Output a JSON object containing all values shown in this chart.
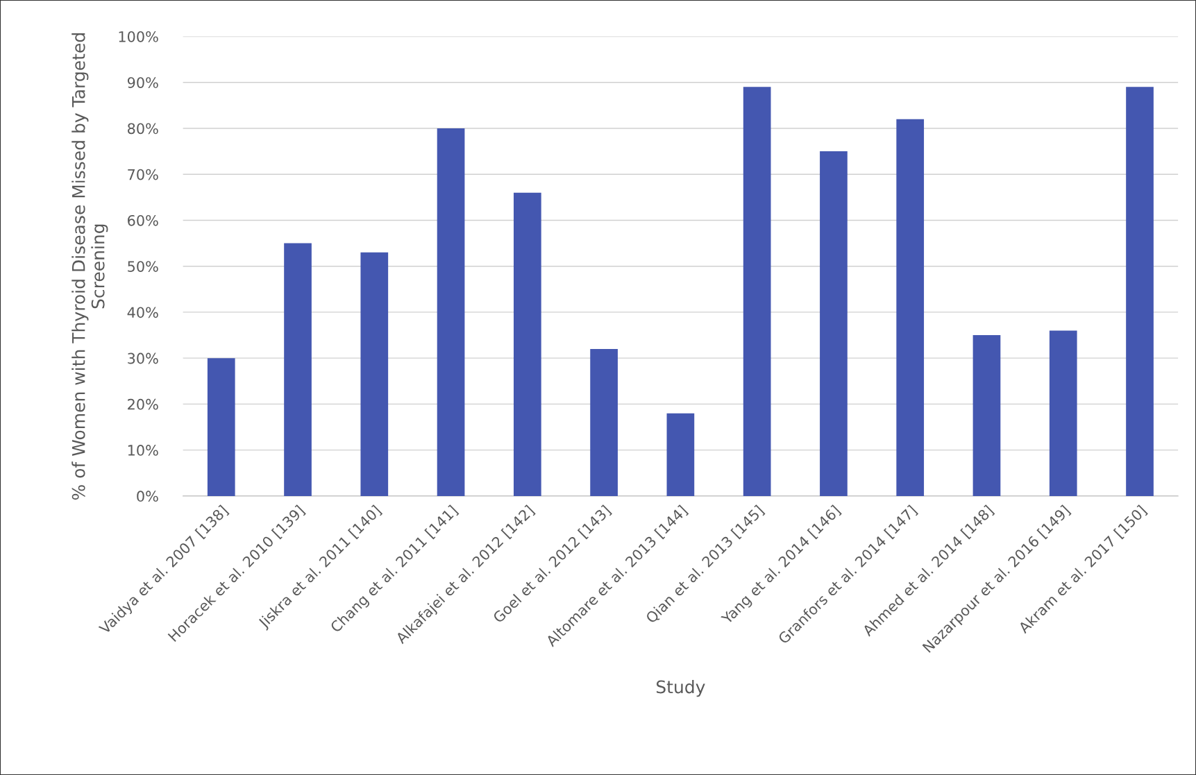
{
  "chart_data": {
    "type": "bar",
    "xlabel": "Study",
    "ylabel": "% of Women with Thyroid Disease Missed by Targeted\nScreening",
    "categories": [
      "Vaidya et al. 2007 [138]",
      "Horacek et al. 2010 [139]",
      "Jiskra et al. 2011 [140]",
      "Chang et al. 2011 [141]",
      "Alkafajei et al. 2012 [142]",
      "Goel et al. 2012 [143]",
      "Altomare et al. 2013 [144]",
      "Qian et al. 2013 [145]",
      "Yang et al. 2014 [146]",
      "Granfors et al. 2014 [147]",
      "Ahmed et al. 2014 [148]",
      "Nazarpour et al. 2016 [149]",
      "Akram et al. 2017 [150]"
    ],
    "values": [
      30,
      55,
      53,
      80,
      66,
      32,
      18,
      89,
      75,
      82,
      35,
      36,
      89
    ],
    "color": "#4457b0",
    "ylim": [
      0,
      100
    ],
    "yticks": [
      {
        "value": 0,
        "label": "0%"
      },
      {
        "value": 10,
        "label": "10%"
      },
      {
        "value": 20,
        "label": "20%"
      },
      {
        "value": 30,
        "label": "30%"
      },
      {
        "value": 40,
        "label": "40%"
      },
      {
        "value": 50,
        "label": "50%"
      },
      {
        "value": 60,
        "label": "60%"
      },
      {
        "value": 70,
        "label": "70%"
      },
      {
        "value": 80,
        "label": "80%"
      },
      {
        "value": 90,
        "label": "90%"
      },
      {
        "value": 100,
        "label": "100%"
      }
    ],
    "grid": "y",
    "legend": false
  }
}
